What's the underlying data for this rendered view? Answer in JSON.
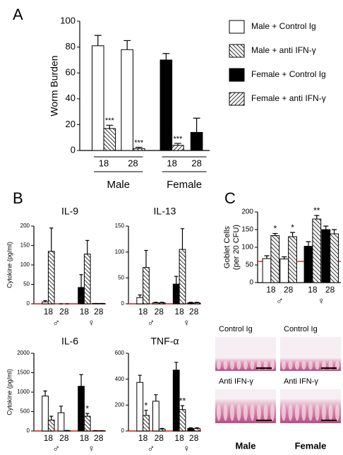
{
  "chart_data": [
    {
      "type": "bar",
      "panel_label": "A",
      "y_label": "Worm Burden",
      "ylim": [
        0,
        100
      ],
      "yticks": [
        0,
        20,
        40,
        60,
        80,
        100
      ],
      "categories": [
        "18",
        "28",
        "18",
        "28"
      ],
      "groups": [
        "Male",
        "Female"
      ],
      "legend": "right",
      "series": [
        {
          "name": "Male + Control Ig",
          "color": "#000000",
          "pattern": "open",
          "values": [
            81,
            78,
            null,
            null
          ],
          "errors": [
            8,
            7,
            null,
            null
          ]
        },
        {
          "name": "Male + anti IFN-γ",
          "color": "#000000",
          "pattern": "back-hatch",
          "values": [
            17,
            1.5,
            null,
            null
          ],
          "errors": [
            2.5,
            1,
            null,
            null
          ],
          "significance": [
            "***",
            "***",
            null,
            null
          ]
        },
        {
          "name": "Female + Control Ig",
          "color": "#000000",
          "pattern": "solid",
          "values": [
            null,
            null,
            70,
            14
          ],
          "errors": [
            null,
            null,
            5,
            11
          ]
        },
        {
          "name": "Female + anti IFN-γ",
          "color": "#000000",
          "pattern": "forward-hatch",
          "values": [
            null,
            null,
            4,
            null
          ],
          "errors": [
            null,
            null,
            1.5,
            null
          ],
          "significance": [
            null,
            null,
            "***",
            null
          ]
        }
      ]
    },
    {
      "type": "bar",
      "panel_label": "B",
      "title": "IL-9",
      "y_label": "Cytokine (pg/ml)",
      "ylim": [
        0,
        200
      ],
      "yticks": [
        0,
        50,
        100,
        150,
        200
      ],
      "categories": [
        "18",
        "28",
        "18",
        "28"
      ],
      "groups": [
        "♂",
        "♀"
      ],
      "reference_line": {
        "value": 0,
        "color": "#e0302a"
      },
      "series": [
        {
          "color": "#000000",
          "pattern": "open",
          "values": [
            5,
            0,
            null,
            null
          ],
          "errors": [
            3,
            0,
            null,
            null
          ]
        },
        {
          "color": "#000000",
          "pattern": "back-hatch",
          "values": [
            135,
            0,
            null,
            null
          ],
          "errors": [
            60,
            0,
            null,
            null
          ]
        },
        {
          "color": "#000000",
          "pattern": "solid",
          "values": [
            null,
            null,
            42,
            1
          ],
          "errors": [
            null,
            null,
            33,
            0
          ]
        },
        {
          "color": "#000000",
          "pattern": "back-hatch",
          "values": [
            null,
            null,
            128,
            1
          ],
          "errors": [
            null,
            null,
            35,
            0
          ]
        }
      ]
    },
    {
      "type": "bar",
      "title": "IL-13",
      "ylim": [
        0,
        150
      ],
      "yticks": [
        0,
        50,
        100,
        150
      ],
      "categories": [
        "18",
        "28",
        "18",
        "28"
      ],
      "groups": [
        "♂",
        "♀"
      ],
      "reference_line": {
        "value": 0,
        "color": "#e0302a"
      },
      "series": [
        {
          "color": "#000000",
          "pattern": "open",
          "values": [
            12,
            2,
            null,
            null
          ],
          "errors": [
            5,
            1,
            null,
            null
          ]
        },
        {
          "color": "#000000",
          "pattern": "back-hatch",
          "values": [
            70,
            2,
            null,
            null
          ],
          "errors": [
            33,
            1,
            null,
            null
          ]
        },
        {
          "color": "#000000",
          "pattern": "solid",
          "values": [
            null,
            null,
            38,
            2
          ],
          "errors": [
            null,
            null,
            15,
            1
          ]
        },
        {
          "color": "#000000",
          "pattern": "back-hatch",
          "values": [
            null,
            null,
            105,
            2
          ],
          "errors": [
            null,
            null,
            40,
            1
          ]
        }
      ]
    },
    {
      "type": "bar",
      "title": "IL-6",
      "y_label": "Cytokine (pg/ml)",
      "ylim": [
        0,
        2000
      ],
      "yticks": [
        0,
        500,
        1000,
        1500,
        2000
      ],
      "categories": [
        "18",
        "28",
        "18",
        "28"
      ],
      "groups": [
        "♂",
        "♀"
      ],
      "reference_line": {
        "value": 0,
        "color": "#e0302a"
      },
      "series": [
        {
          "color": "#000000",
          "pattern": "open",
          "values": [
            900,
            470,
            null,
            null
          ],
          "errors": [
            130,
            170,
            null,
            null
          ]
        },
        {
          "color": "#000000",
          "pattern": "back-hatch",
          "values": [
            280,
            10,
            null,
            null
          ],
          "errors": [
            100,
            5,
            null,
            null
          ]
        },
        {
          "color": "#000000",
          "pattern": "solid",
          "values": [
            null,
            null,
            1150,
            5
          ],
          "errors": [
            null,
            null,
            300,
            5
          ]
        },
        {
          "color": "#000000",
          "pattern": "back-hatch",
          "values": [
            null,
            null,
            380,
            5
          ],
          "errors": [
            null,
            null,
            70,
            5
          ],
          "significance": [
            null,
            null,
            "*",
            null
          ]
        }
      ]
    },
    {
      "type": "bar",
      "title": "TNF-α",
      "ylim": [
        0,
        600
      ],
      "yticks": [
        0,
        200,
        400,
        600
      ],
      "categories": [
        "18",
        "28",
        "18",
        "28"
      ],
      "groups": [
        "♂",
        "♀"
      ],
      "reference_line": {
        "value": 0,
        "color": "#e0302a"
      },
      "series": [
        {
          "color": "#000000",
          "pattern": "open",
          "values": [
            375,
            230,
            null,
            null
          ],
          "errors": [
            55,
            50,
            null,
            null
          ]
        },
        {
          "color": "#000000",
          "pattern": "back-hatch",
          "values": [
            120,
            15,
            null,
            null
          ],
          "errors": [
            40,
            5,
            null,
            null
          ],
          "significance": [
            "*",
            null,
            null,
            null
          ]
        },
        {
          "color": "#000000",
          "pattern": "solid",
          "values": [
            null,
            null,
            470,
            20
          ],
          "errors": [
            null,
            null,
            60,
            5
          ]
        },
        {
          "color": "#000000",
          "pattern": "back-hatch",
          "values": [
            null,
            null,
            165,
            20
          ],
          "errors": [
            null,
            null,
            30,
            5
          ],
          "significance": [
            null,
            null,
            "**",
            null
          ]
        }
      ]
    },
    {
      "type": "bar",
      "panel_label": "C",
      "y_label": [
        "Goblet Cells",
        "(per 20 CFU)"
      ],
      "ylim": [
        0,
        200
      ],
      "yticks": [
        0,
        50,
        100,
        150,
        200
      ],
      "categories": [
        "18",
        "28",
        "18",
        "28"
      ],
      "groups": [
        "♂",
        "♀"
      ],
      "reference_line": {
        "value": 60,
        "color": "#e0302a"
      },
      "series": [
        {
          "color": "#000000",
          "pattern": "open",
          "values": [
            68,
            67,
            null,
            null
          ],
          "errors": [
            8,
            6,
            null,
            null
          ]
        },
        {
          "color": "#000000",
          "pattern": "back-hatch",
          "values": [
            133,
            130,
            null,
            null
          ],
          "errors": [
            6,
            12,
            null,
            null
          ],
          "significance": [
            "*",
            "*",
            null,
            null
          ]
        },
        {
          "color": "#000000",
          "pattern": "solid",
          "values": [
            null,
            null,
            103,
            150
          ],
          "errors": [
            null,
            null,
            13,
            10
          ]
        },
        {
          "color": "#000000",
          "pattern": "back-hatch",
          "values": [
            null,
            null,
            180,
            138
          ],
          "errors": [
            null,
            null,
            10,
            12
          ],
          "significance": [
            null,
            null,
            "**",
            null
          ]
        }
      ]
    }
  ],
  "micrographs": {
    "tiles": [
      {
        "label": "Control Ig"
      },
      {
        "label": "Control Ig"
      },
      {
        "label": "Anti IFN-γ"
      },
      {
        "label": "Anti IFN-γ"
      }
    ],
    "columns": [
      "Male",
      "Female"
    ]
  }
}
